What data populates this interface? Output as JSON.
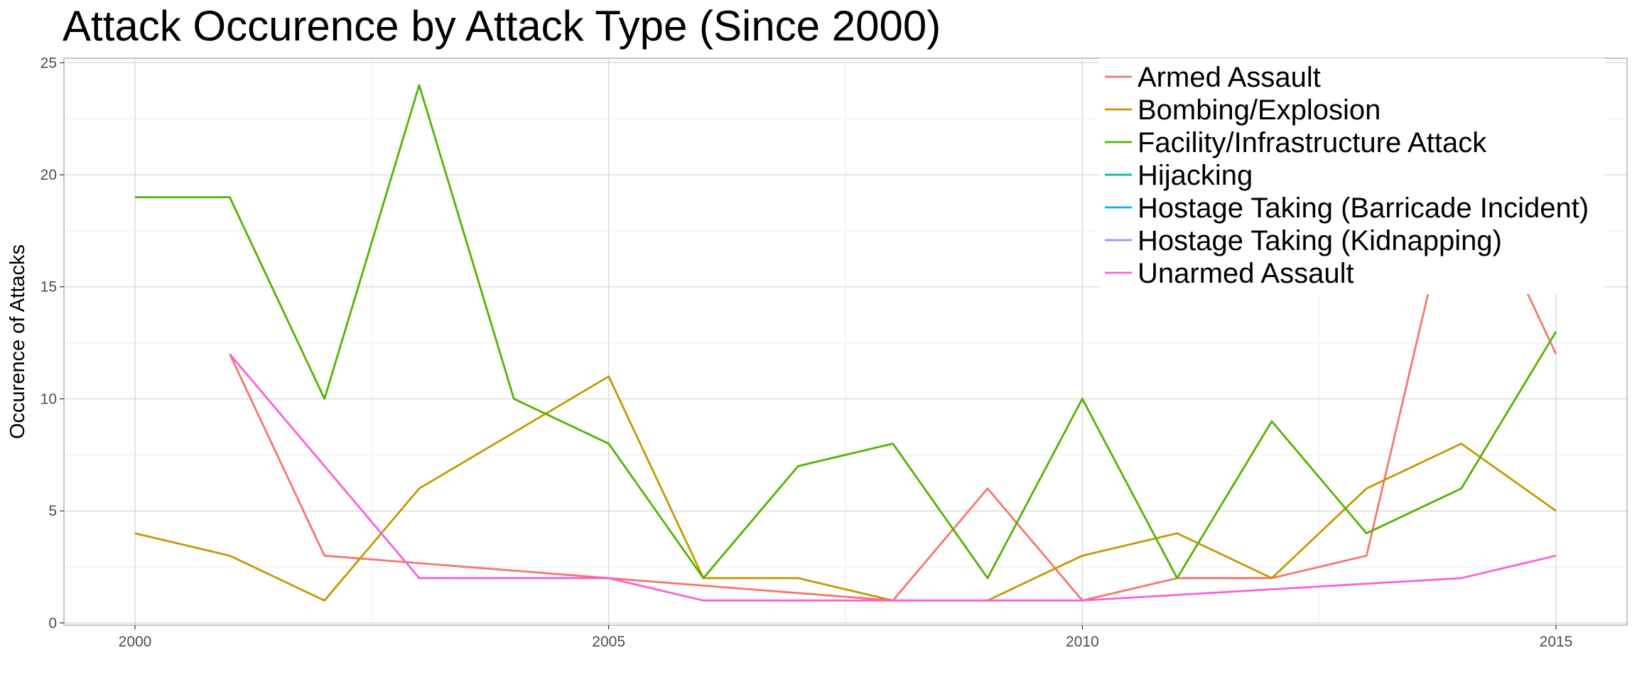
{
  "chart_data": {
    "type": "line",
    "title": "Attack Occurence by Attack Type (Since 2000)",
    "xlabel": "",
    "ylabel": "Occurence of Attacks",
    "xlim": [
      1999.25,
      2015.75
    ],
    "ylim": [
      -0.1,
      25.2
    ],
    "x_ticks": [
      2000,
      2005,
      2010,
      2015
    ],
    "y_ticks": [
      0,
      5,
      10,
      15,
      20,
      25
    ],
    "grid": true,
    "legend_position": "top-right",
    "series": [
      {
        "name": "Armed Assault",
        "color": "#F8766D",
        "points": [
          [
            2001,
            12
          ],
          [
            2002,
            3
          ],
          [
            2005,
            2
          ],
          [
            2008,
            1
          ],
          [
            2009,
            6
          ],
          [
            2010,
            1
          ],
          [
            2011,
            2
          ],
          [
            2012,
            2
          ],
          [
            2013,
            3
          ],
          [
            2014,
            21
          ],
          [
            2015,
            12
          ]
        ]
      },
      {
        "name": "Bombing/Explosion",
        "color": "#C49A00",
        "points": [
          [
            2000,
            4
          ],
          [
            2001,
            3
          ],
          [
            2002,
            1
          ],
          [
            2003,
            6
          ],
          [
            2005,
            11
          ],
          [
            2006,
            2
          ],
          [
            2007,
            2
          ],
          [
            2008,
            1
          ],
          [
            2009,
            1
          ],
          [
            2010,
            3
          ],
          [
            2011,
            4
          ],
          [
            2012,
            2
          ],
          [
            2013,
            6
          ],
          [
            2014,
            8
          ],
          [
            2015,
            5
          ]
        ]
      },
      {
        "name": "Facility/Infrastructure Attack",
        "color": "#53B400",
        "points": [
          [
            2000,
            19
          ],
          [
            2001,
            19
          ],
          [
            2002,
            10
          ],
          [
            2003,
            24
          ],
          [
            2004,
            10
          ],
          [
            2005,
            8
          ],
          [
            2006,
            2
          ],
          [
            2007,
            7
          ],
          [
            2008,
            8
          ],
          [
            2009,
            2
          ],
          [
            2010,
            10
          ],
          [
            2011,
            2
          ],
          [
            2012,
            9
          ],
          [
            2013,
            4
          ],
          [
            2014,
            6
          ],
          [
            2015,
            13
          ]
        ]
      },
      {
        "name": "Hijacking",
        "color": "#00C094",
        "points": []
      },
      {
        "name": "Hostage Taking (Barricade Incident)",
        "color": "#00B6EB",
        "points": []
      },
      {
        "name": "Hostage Taking (Kidnapping)",
        "color": "#A58AFF",
        "points": []
      },
      {
        "name": "Unarmed Assault",
        "color": "#FB61D7",
        "points": [
          [
            2001,
            12
          ],
          [
            2003,
            2
          ],
          [
            2005,
            2
          ],
          [
            2006,
            1
          ],
          [
            2010,
            1
          ],
          [
            2014,
            2
          ],
          [
            2015,
            3
          ]
        ]
      }
    ]
  }
}
